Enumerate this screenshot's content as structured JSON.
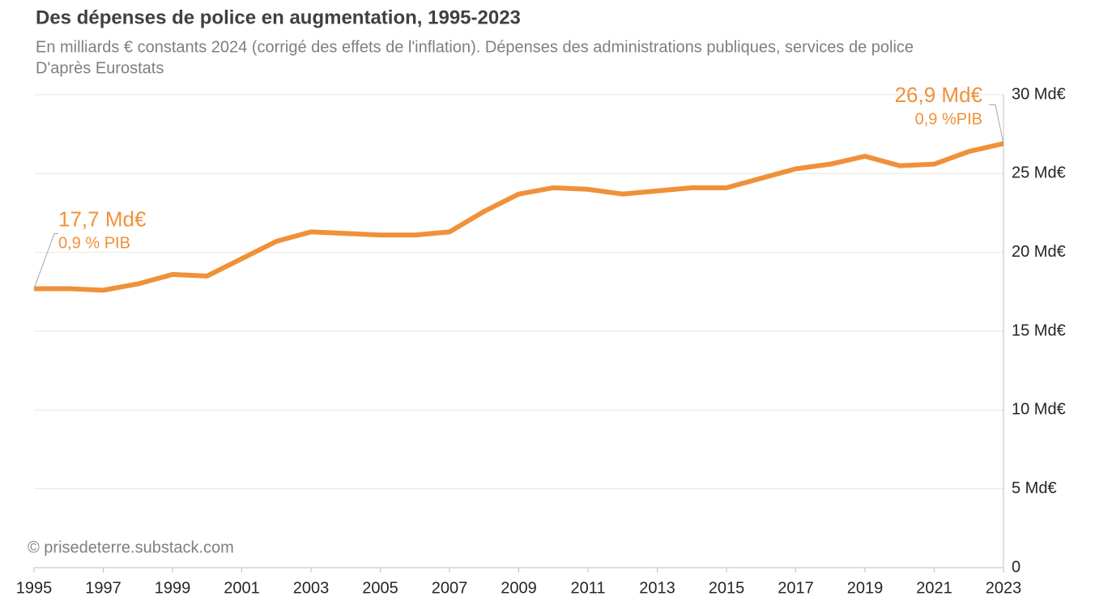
{
  "chart_data": {
    "type": "line",
    "title": "Des dépenses de police en augmentation, 1995-2023",
    "subtitle": "En milliards € constants 2024 (corrigé des effets de l'inflation).  Dépenses des administrations publiques,  services de police",
    "source": "D'après Eurostats",
    "credit": "© prisedeterre.substack.com",
    "x": [
      1995,
      1996,
      1997,
      1998,
      1999,
      2000,
      2001,
      2002,
      2003,
      2004,
      2005,
      2006,
      2007,
      2008,
      2009,
      2010,
      2011,
      2012,
      2013,
      2014,
      2015,
      2016,
      2017,
      2018,
      2019,
      2020,
      2021,
      2022,
      2023
    ],
    "series": [
      {
        "name": "Dépenses de police",
        "color": "#f0913a",
        "values": [
          17.7,
          17.7,
          17.6,
          18.0,
          18.6,
          18.5,
          19.6,
          20.7,
          21.3,
          21.2,
          21.1,
          21.1,
          21.3,
          22.6,
          23.7,
          24.1,
          24.0,
          23.7,
          23.9,
          24.1,
          24.1,
          24.7,
          25.3,
          25.6,
          26.1,
          25.5,
          25.6,
          26.4,
          26.9
        ]
      }
    ],
    "annotations": [
      {
        "label": "17,7 Md€",
        "note": "0,9 % PIB"
      },
      {
        "label": "26,9 Md€",
        "note": "0,9 %PIB"
      }
    ],
    "xlim": [
      1995,
      2023
    ],
    "xticks": [
      1995,
      1997,
      1999,
      2001,
      2003,
      2005,
      2007,
      2009,
      2011,
      2013,
      2015,
      2017,
      2019,
      2021,
      2023
    ],
    "ylim": [
      0,
      30
    ],
    "yticks": [
      0,
      {
        "value": 5,
        "label": "5 Md€"
      },
      {
        "value": 10,
        "label": "10 Md€"
      },
      {
        "value": 15,
        "label": "15 Md€"
      },
      {
        "value": 20,
        "label": "20 Md€"
      },
      {
        "value": 25,
        "label": "25 Md€"
      },
      {
        "value": 30,
        "label": "30 Md€"
      }
    ],
    "grid": true,
    "y_axis_side": "right"
  }
}
